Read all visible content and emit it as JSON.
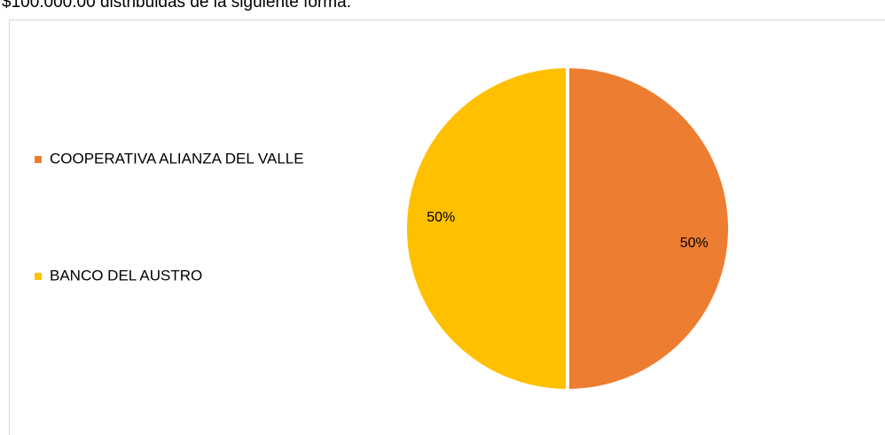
{
  "caption": "$100.000.00 distribuidas de la siguiente forma:",
  "chart_data": {
    "type": "pie",
    "categories": [
      "COOPERATIVA ALIANZA DEL VALLE",
      "BANCO DEL AUSTRO"
    ],
    "values": [
      50,
      50
    ],
    "value_labels": [
      "50%",
      "50%"
    ],
    "colors": [
      "#ed7d31",
      "#ffc000"
    ],
    "legend": "left"
  }
}
